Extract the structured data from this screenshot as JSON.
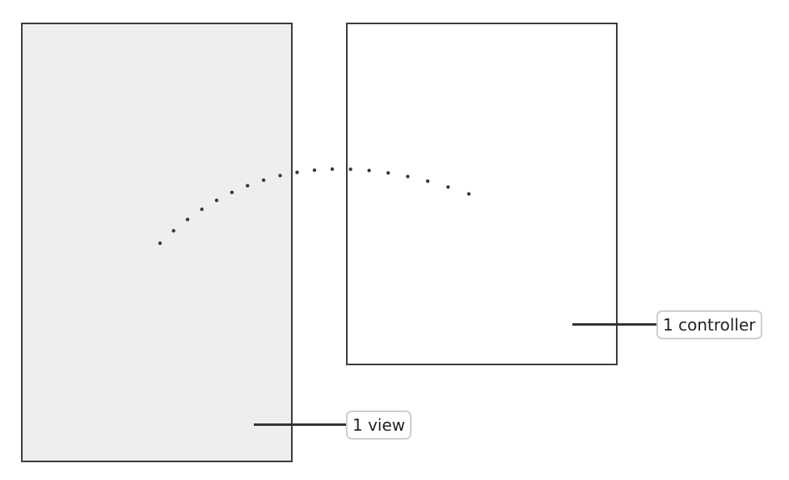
{
  "colors": {
    "view_fill": "#eeeeee",
    "controller_fill": "#ffffff",
    "stroke": "#3a3a3a",
    "callout_border": "#cfcfcf",
    "text": "#222222"
  },
  "diagram": {
    "view_label": "1 view",
    "controller_label": "1 controller",
    "connector_style": "dotted-arc"
  }
}
